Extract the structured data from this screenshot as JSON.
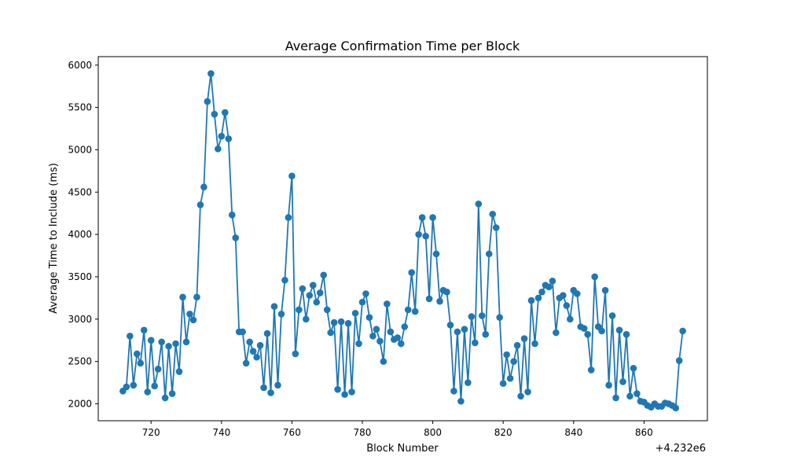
{
  "chart_data": {
    "type": "line",
    "title": "Average Confirmation Time per Block",
    "xlabel": "Block Number",
    "ylabel": "Average Time to Include (ms)",
    "x_offset_label": "+4.232e6",
    "x_offset": 4232000,
    "xlim": [
      4232705,
      4232878
    ],
    "ylim": [
      1800,
      6100
    ],
    "xticks": [
      4232720,
      4232740,
      4232760,
      4232780,
      4232800,
      4232820,
      4232840,
      4232860
    ],
    "xtick_labels": [
      "720",
      "740",
      "760",
      "780",
      "800",
      "820",
      "840",
      "860"
    ],
    "yticks": [
      2000,
      2500,
      3000,
      3500,
      4000,
      4500,
      5000,
      5500,
      6000
    ],
    "ytick_labels": [
      "2000",
      "2500",
      "3000",
      "3500",
      "4000",
      "4500",
      "5000",
      "5500",
      "6000"
    ],
    "grid": false,
    "marker": "circle",
    "color": "#1f77b4",
    "series": [
      {
        "x_start": 4232712,
        "x_step": 1,
        "values": [
          2150,
          2200,
          2800,
          2220,
          2590,
          2480,
          2870,
          2140,
          2750,
          2210,
          2410,
          2730,
          2070,
          2680,
          2120,
          2710,
          2380,
          3260,
          2730,
          3060,
          2990,
          3260,
          4350,
          4560,
          5570,
          5900,
          5420,
          5010,
          5160,
          5440,
          5130,
          4230,
          3960,
          2850,
          2850,
          2480,
          2730,
          2620,
          2550,
          2690,
          2190,
          2830,
          2130,
          3150,
          2220,
          3060,
          3460,
          4200,
          4690,
          2590,
          3110,
          3360,
          3000,
          3280,
          3400,
          3200,
          3310,
          3520,
          3110,
          2840,
          2960,
          2170,
          2970,
          2110,
          2950,
          2140,
          3070,
          2710,
          3200,
          3300,
          3020,
          2800,
          2880,
          2740,
          2500,
          3180,
          2850,
          2760,
          2780,
          2710,
          2910,
          3110,
          3550,
          3090,
          4000,
          4200,
          3980,
          3240,
          4200,
          3770,
          3210,
          3340,
          3320,
          2930,
          2150,
          2850,
          2030,
          2880,
          2250,
          3030,
          2720,
          4360,
          3040,
          2820,
          3770,
          4240,
          4080,
          3020,
          2240,
          2580,
          2300,
          2500,
          2690,
          2090,
          2770,
          2140,
          3220,
          2710,
          3250,
          3320,
          3400,
          3380,
          3450,
          2840,
          3250,
          3280,
          3160,
          3000,
          3340,
          3300,
          2910,
          2890,
          2820,
          2400,
          3500,
          2910,
          2860,
          3340,
          2220,
          3040,
          2070,
          2870,
          2260,
          2820,
          2090,
          2420,
          2120,
          2030,
          2020,
          1980,
          1960,
          2000,
          1970,
          1970,
          2010,
          2000,
          1980,
          1950,
          2510,
          2860
        ]
      }
    ]
  }
}
